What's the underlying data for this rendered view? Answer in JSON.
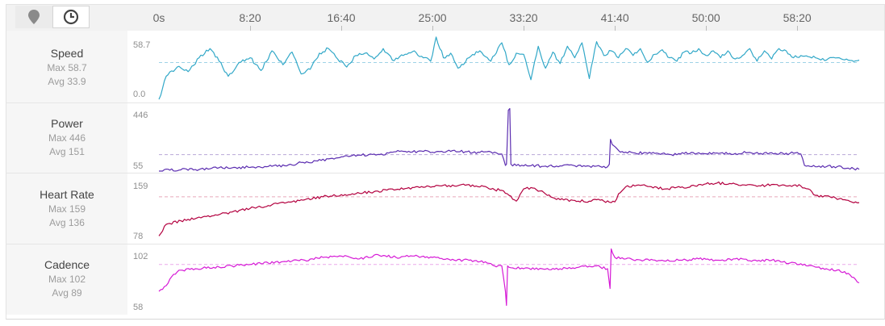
{
  "toolbar": {
    "map_icon": "map-pin-icon",
    "time_icon": "clock-icon"
  },
  "colors": {
    "speed": "#32a8c8",
    "power": "#5b2db0",
    "heart_rate": "#b3003f",
    "cadence": "#d61ad6",
    "avg_line_blue": "#9fd3e6",
    "avg_line_purple": "#b9a7d8",
    "avg_line_red": "#e6a9bb",
    "avg_line_pink": "#eaa9ea"
  },
  "chart_data": {
    "type": "line",
    "x_unit": "elapsed time (m:ss)",
    "xlim": [
      0,
      3840
    ],
    "x_ticks": [
      {
        "value": 0,
        "label": "0s"
      },
      {
        "value": 500,
        "label": "8:20"
      },
      {
        "value": 1000,
        "label": "16:40"
      },
      {
        "value": 1500,
        "label": "25:00"
      },
      {
        "value": 2000,
        "label": "33:20"
      },
      {
        "value": 2500,
        "label": "41:40"
      },
      {
        "value": 3000,
        "label": "50:00"
      },
      {
        "value": 3500,
        "label": "58:20"
      }
    ],
    "panels": [
      {
        "key": "speed",
        "name": "Speed",
        "max_label": "Max 58.7",
        "avg_label": "Avg 33.9",
        "y_top_label": "58.7",
        "y_bottom_label": "0.0",
        "ylim": [
          0,
          58.7
        ],
        "avg": 33.9,
        "x": [
          0,
          40,
          100,
          160,
          220,
          280,
          330,
          380,
          440,
          500,
          560,
          620,
          680,
          730,
          780,
          830,
          880,
          930,
          980,
          1030,
          1080,
          1130,
          1180,
          1230,
          1280,
          1340,
          1400,
          1450,
          1490,
          1520,
          1560,
          1600,
          1640,
          1700,
          1760,
          1820,
          1880,
          1920,
          1960,
          2000,
          2040,
          2080,
          2120,
          2160,
          2200,
          2240,
          2280,
          2320,
          2360,
          2400,
          2440,
          2480,
          2520,
          2560,
          2600,
          2640,
          2680,
          2720,
          2760,
          2800,
          2840,
          2880,
          2920,
          2960,
          3000,
          3040,
          3080,
          3120,
          3160,
          3200,
          3240,
          3280,
          3320,
          3360,
          3400,
          3440,
          3480,
          3520,
          3560,
          3600,
          3660,
          3720,
          3780,
          3840
        ],
        "values": [
          2,
          22,
          30,
          26,
          38,
          46,
          35,
          22,
          34,
          38,
          27,
          44,
          32,
          43,
          24,
          28,
          42,
          46,
          37,
          30,
          40,
          42,
          37,
          46,
          36,
          40,
          44,
          38,
          35,
          56,
          38,
          42,
          29,
          38,
          44,
          35,
          51,
          32,
          42,
          41,
          19,
          48,
          29,
          43,
          33,
          48,
          38,
          51,
          20,
          52,
          40,
          44,
          38,
          46,
          40,
          46,
          34,
          41,
          45,
          38,
          35,
          43,
          42,
          46,
          40,
          44,
          38,
          44,
          37,
          40,
          46,
          35,
          44,
          37,
          46,
          44,
          38,
          40,
          39,
          38,
          36,
          38,
          36,
          36
        ]
      },
      {
        "key": "power",
        "name": "Power",
        "max_label": "Max 446",
        "avg_label": "Avg 151",
        "y_top_label": "446",
        "y_bottom_label": "55",
        "ylim": [
          55,
          446
        ],
        "avg": 151,
        "x": [
          0,
          60,
          120,
          200,
          280,
          330,
          420,
          520,
          600,
          700,
          760,
          860,
          960,
          1040,
          1100,
          1200,
          1260,
          1300,
          1360,
          1440,
          1520,
          1600,
          1680,
          1720,
          1760,
          1800,
          1840,
          1880,
          1900,
          1906,
          1916,
          1924,
          1930,
          1960,
          2040,
          2120,
          2200,
          2280,
          2360,
          2420,
          2460,
          2470,
          2476,
          2486,
          2530,
          2600,
          2700,
          2800,
          2860,
          2920,
          3000,
          3080,
          3160,
          3240,
          3300,
          3360,
          3420,
          3460,
          3500,
          3520,
          3540,
          3560,
          3620,
          3700,
          3780,
          3840
        ],
        "values": [
          55,
          60,
          62,
          64,
          68,
          75,
          76,
          78,
          82,
          85,
          100,
          115,
          125,
          140,
          148,
          152,
          160,
          168,
          165,
          172,
          168,
          170,
          168,
          162,
          164,
          168,
          165,
          155,
          88,
          95,
          410,
          420,
          95,
          87,
          86,
          84,
          85,
          86,
          84,
          82,
          80,
          95,
          240,
          210,
          165,
          162,
          158,
          152,
          155,
          164,
          156,
          160,
          158,
          164,
          158,
          162,
          160,
          158,
          164,
          155,
          88,
          86,
          84,
          82,
          72,
          65
        ]
      },
      {
        "key": "heart_rate",
        "name": "Heart Rate",
        "max_label": "Max 159",
        "avg_label": "Avg 136",
        "y_top_label": "159",
        "y_bottom_label": "78",
        "ylim": [
          78,
          166
        ],
        "avg": 136,
        "x": [
          0,
          40,
          120,
          200,
          300,
          400,
          500,
          600,
          700,
          800,
          900,
          1000,
          1100,
          1200,
          1300,
          1400,
          1500,
          1560,
          1620,
          1680,
          1740,
          1800,
          1840,
          1880,
          1920,
          1960,
          2000,
          2060,
          2120,
          2200,
          2280,
          2360,
          2400,
          2440,
          2480,
          2500,
          2520,
          2560,
          2620,
          2700,
          2780,
          2860,
          2940,
          3000,
          3060,
          3140,
          3220,
          3300,
          3380,
          3440,
          3480,
          3520,
          3560,
          3600,
          3680,
          3760,
          3840
        ],
        "values": [
          82,
          98,
          103,
          106,
          110,
          115,
          120,
          124,
          128,
          132,
          136,
          139,
          141,
          144,
          146,
          149,
          150,
          152,
          151,
          152,
          151,
          149,
          146,
          145,
          138,
          130,
          147,
          148,
          140,
          132,
          131,
          130,
          132,
          130,
          128,
          129,
          140,
          150,
          152,
          150,
          147,
          149,
          151,
          154,
          155,
          154,
          152,
          151,
          153,
          151,
          152,
          151,
          147,
          138,
          136,
          132,
          128
        ]
      },
      {
        "key": "cadence",
        "name": "Cadence",
        "max_label": "Max 102",
        "avg_label": "Avg 89",
        "y_top_label": "102",
        "y_bottom_label": "58",
        "ylim": [
          58,
          102
        ],
        "avg": 89,
        "x": [
          0,
          40,
          80,
          120,
          200,
          300,
          400,
          500,
          600,
          700,
          800,
          900,
          1000,
          1100,
          1200,
          1300,
          1400,
          1500,
          1600,
          1700,
          1760,
          1800,
          1840,
          1880,
          1900,
          1906,
          1912,
          1920,
          2000,
          2100,
          2200,
          2300,
          2400,
          2460,
          2474,
          2480,
          2488,
          2500,
          2560,
          2660,
          2760,
          2860,
          2960,
          3060,
          3160,
          3260,
          3360,
          3460,
          3560,
          3660,
          3760,
          3800,
          3840
        ],
        "values": [
          70,
          74,
          82,
          85,
          86,
          87,
          88,
          89,
          90,
          91,
          92,
          94,
          95,
          93,
          96,
          94,
          95,
          94,
          92,
          92,
          91,
          90,
          88,
          88,
          70,
          60,
          88,
          87,
          86,
          86,
          86,
          87,
          88,
          86,
          72,
          100,
          97,
          94,
          93,
          92,
          92,
          92,
          93,
          92,
          93,
          92,
          92,
          90,
          88,
          86,
          84,
          80,
          76
        ]
      }
    ]
  }
}
